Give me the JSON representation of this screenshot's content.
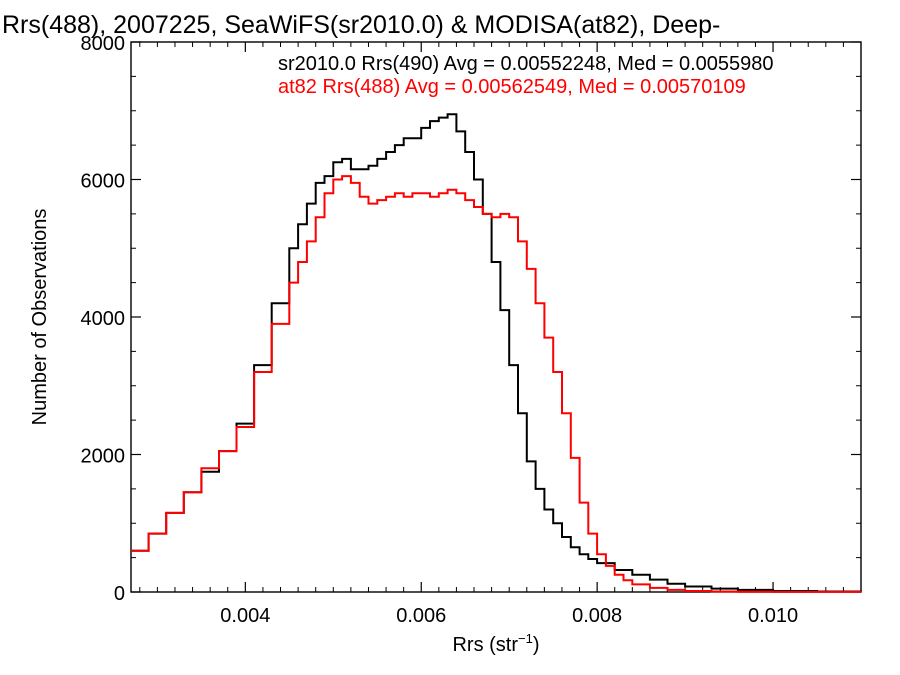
{
  "chart_data": {
    "type": "line",
    "title": "Rrs(488), 2007225, SeaWiFS(sr2010.0) & MODISA(at82), Deep-",
    "xlabel": "Rrs (str",
    "xlabel_sup": "−1",
    "xlabel_end": ")",
    "ylabel": "Number of Observations",
    "xlim": [
      0.0027,
      0.011
    ],
    "ylim": [
      0,
      8000
    ],
    "xticks": [
      0.004,
      0.006,
      0.008,
      0.01
    ],
    "xtick_labels": [
      "0.004",
      "0.006",
      "0.008",
      "0.010"
    ],
    "yticks": [
      0,
      2000,
      4000,
      6000,
      8000
    ],
    "ytick_labels": [
      "0",
      "2000",
      "4000",
      "6000",
      "8000"
    ],
    "grid": false,
    "legend_position": "top-right",
    "series": [
      {
        "name": "sr2010.0 Rrs(490) Avg = 0.00552248, Med = 0.0055980",
        "color": "#000000",
        "x": [
          0.0027,
          0.0029,
          0.0031,
          0.0033,
          0.0035,
          0.0037,
          0.0039,
          0.0041,
          0.0043,
          0.0045,
          0.0046,
          0.0047,
          0.0048,
          0.0049,
          0.005,
          0.0051,
          0.0052,
          0.0053,
          0.0054,
          0.0055,
          0.0056,
          0.0057,
          0.0058,
          0.0059,
          0.006,
          0.0061,
          0.0062,
          0.0063,
          0.0064,
          0.0065,
          0.0066,
          0.0067,
          0.0068,
          0.0069,
          0.007,
          0.0071,
          0.0072,
          0.0073,
          0.0074,
          0.0075,
          0.0076,
          0.0077,
          0.0078,
          0.0079,
          0.008,
          0.0082,
          0.0084,
          0.0086,
          0.0088,
          0.009,
          0.0093,
          0.0096,
          0.01,
          0.0105,
          0.011
        ],
        "values": [
          600,
          850,
          1150,
          1450,
          1750,
          2050,
          2450,
          3300,
          4200,
          5000,
          5350,
          5650,
          5950,
          6050,
          6250,
          6300,
          6150,
          6150,
          6200,
          6300,
          6400,
          6500,
          6600,
          6600,
          6750,
          6850,
          6900,
          6950,
          6700,
          6400,
          6000,
          5500,
          4800,
          4100,
          3300,
          2600,
          1900,
          1500,
          1200,
          1000,
          800,
          650,
          550,
          480,
          420,
          320,
          250,
          180,
          120,
          80,
          50,
          30,
          15,
          8,
          5
        ]
      },
      {
        "name": "at82 Rrs(488) Avg = 0.00562549, Med = 0.00570109",
        "color": "#ff0000",
        "x": [
          0.0027,
          0.0029,
          0.0031,
          0.0033,
          0.0035,
          0.0037,
          0.0039,
          0.0041,
          0.0043,
          0.0045,
          0.0046,
          0.0047,
          0.0048,
          0.0049,
          0.005,
          0.0051,
          0.0052,
          0.0053,
          0.0054,
          0.0055,
          0.0056,
          0.0057,
          0.0058,
          0.0059,
          0.006,
          0.0061,
          0.0062,
          0.0063,
          0.0064,
          0.0065,
          0.0066,
          0.0067,
          0.0068,
          0.0069,
          0.007,
          0.0071,
          0.0072,
          0.0073,
          0.0074,
          0.0075,
          0.0076,
          0.0077,
          0.0078,
          0.0079,
          0.008,
          0.0081,
          0.0082,
          0.0083,
          0.0084,
          0.0086,
          0.0088,
          0.009,
          0.0093,
          0.0096,
          0.01,
          0.011
        ],
        "values": [
          600,
          850,
          1150,
          1450,
          1800,
          2050,
          2400,
          3200,
          3900,
          4500,
          4800,
          5100,
          5450,
          5800,
          6000,
          6050,
          5950,
          5750,
          5650,
          5700,
          5750,
          5800,
          5750,
          5800,
          5800,
          5750,
          5800,
          5850,
          5800,
          5700,
          5600,
          5500,
          5450,
          5500,
          5450,
          5100,
          4700,
          4200,
          3700,
          3200,
          2600,
          1950,
          1300,
          850,
          550,
          380,
          250,
          170,
          110,
          60,
          30,
          15,
          8,
          4,
          2,
          0
        ]
      }
    ]
  }
}
